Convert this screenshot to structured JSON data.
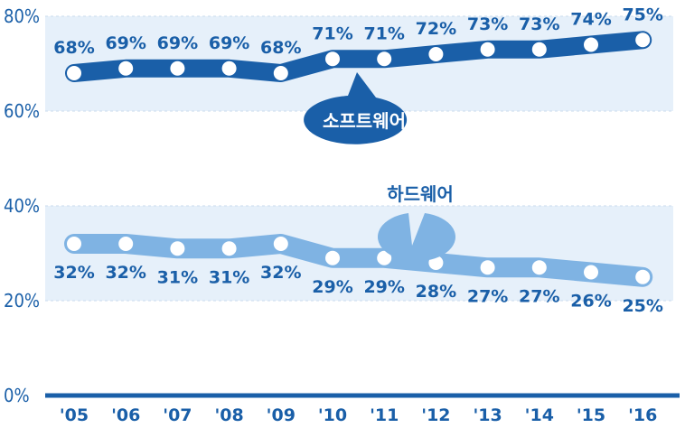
{
  "chart_data": {
    "type": "line",
    "categories": [
      "'05",
      "'06",
      "'07",
      "'08",
      "'09",
      "'10",
      "'11",
      "'12",
      "'13",
      "'14",
      "'15",
      "'16"
    ],
    "series": [
      {
        "name": "소프트웨어",
        "values": [
          68,
          69,
          69,
          69,
          68,
          71,
          71,
          72,
          73,
          73,
          74,
          75
        ],
        "labels": [
          "68%",
          "69%",
          "69%",
          "69%",
          "68%",
          "71%",
          "71%",
          "72%",
          "73%",
          "73%",
          "74%",
          "75%"
        ],
        "color": "#1a5fa8"
      },
      {
        "name": "하드웨어",
        "values": [
          32,
          32,
          31,
          31,
          32,
          29,
          29,
          28,
          27,
          27,
          26,
          25
        ],
        "labels": [
          "32%",
          "32%",
          "31%",
          "31%",
          "32%",
          "29%",
          "29%",
          "28%",
          "27%",
          "27%",
          "26%",
          "25%"
        ],
        "color": "#7fb3e3"
      }
    ],
    "y_ticks": [
      "0%",
      "20%",
      "40%",
      "60%",
      "80%"
    ],
    "ylim": [
      0,
      80
    ],
    "grid": true,
    "band_color": "#e6f0fa"
  }
}
